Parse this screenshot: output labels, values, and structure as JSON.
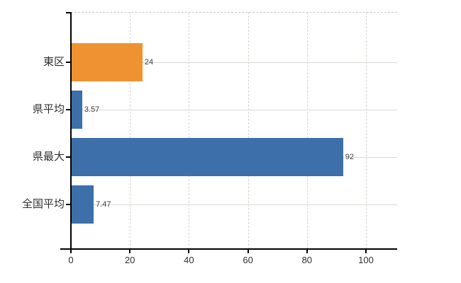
{
  "chart_data": {
    "type": "bar",
    "orientation": "horizontal",
    "title": "",
    "xlabel": "",
    "ylabel": "",
    "categories": [
      "東区",
      "県平均",
      "県最大",
      "全国平均"
    ],
    "values": [
      24,
      3.57,
      92,
      7.47
    ],
    "value_labels": [
      "24",
      "3.57",
      "92",
      "7.47"
    ],
    "bar_colors": [
      "#EF9231",
      "#3D6FAC",
      "#3D6FAC",
      "#3D6FAC"
    ],
    "x_ticks": [
      "0",
      "20",
      "40",
      "60",
      "80",
      "100"
    ],
    "x_tick_values": [
      0,
      20,
      40,
      60,
      80,
      100
    ],
    "xlim": [
      0,
      110.5
    ],
    "grid": true,
    "gridline_style": "vertical dashed, horizontal solid per category row, dashed top border",
    "legend_position": "none",
    "colors": {
      "bar_blue": "#3D6FAC",
      "bar_orange": "#EF9231",
      "axis": "#000000",
      "gridline": "#D6D6D0",
      "text": "#303030",
      "background": "#FFFFFF"
    }
  }
}
